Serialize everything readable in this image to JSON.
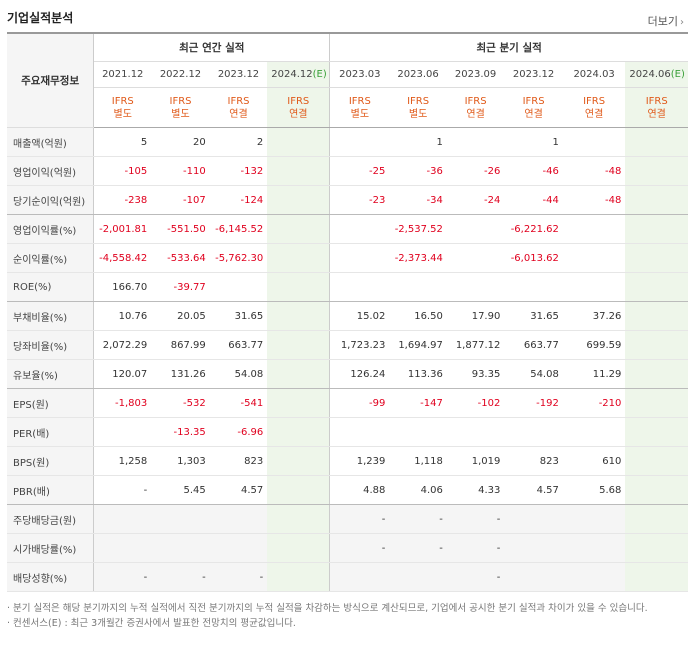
{
  "title": "기업실적분석",
  "more_label": "더보기",
  "header": {
    "row_label": "주요재무정보",
    "group_annual": "최근 연간 실적",
    "group_quarter": "최근 분기 실적",
    "periods": [
      {
        "label": "2021.12",
        "std": "IFRS",
        "kind": "별도"
      },
      {
        "label": "2022.12",
        "std": "IFRS",
        "kind": "별도"
      },
      {
        "label": "2023.12",
        "std": "IFRS",
        "kind": "연결"
      },
      {
        "label": "2024.12",
        "est": "(E)",
        "std": "IFRS",
        "kind": "연결"
      },
      {
        "label": "2023.03",
        "std": "IFRS",
        "kind": "별도"
      },
      {
        "label": "2023.06",
        "std": "IFRS",
        "kind": "별도"
      },
      {
        "label": "2023.09",
        "std": "IFRS",
        "kind": "연결"
      },
      {
        "label": "2023.12",
        "std": "IFRS",
        "kind": "연결"
      },
      {
        "label": "2024.03",
        "std": "IFRS",
        "kind": "연결"
      },
      {
        "label": "2024.06",
        "est": "(E)",
        "std": "IFRS",
        "kind": "연결"
      }
    ]
  },
  "rows": [
    {
      "label": "매출액(억원)",
      "values": [
        "5",
        "20",
        "2",
        "",
        "",
        "1",
        "",
        "1",
        "",
        ""
      ]
    },
    {
      "label": "영업이익(억원)",
      "values": [
        "-105",
        "-110",
        "-132",
        "",
        "-25",
        "-36",
        "-26",
        "-46",
        "-48",
        ""
      ]
    },
    {
      "label": "당기순이익(억원)",
      "values": [
        "-238",
        "-107",
        "-124",
        "",
        "-23",
        "-34",
        "-24",
        "-44",
        "-48",
        ""
      ]
    },
    {
      "label": "영업이익률(%)",
      "values": [
        "-2,001.81",
        "-551.50",
        "-6,145.52",
        "",
        "",
        "-2,537.52",
        "",
        "-6,221.62",
        "",
        ""
      ]
    },
    {
      "label": "순이익률(%)",
      "values": [
        "-4,558.42",
        "-533.64",
        "-5,762.30",
        "",
        "",
        "-2,373.44",
        "",
        "-6,013.62",
        "",
        ""
      ]
    },
    {
      "label": "ROE(%)",
      "values": [
        "166.70",
        "-39.77",
        "",
        "",
        "",
        "",
        "",
        "",
        "",
        ""
      ]
    },
    {
      "label": "부채비율(%)",
      "values": [
        "10.76",
        "20.05",
        "31.65",
        "",
        "15.02",
        "16.50",
        "17.90",
        "31.65",
        "37.26",
        ""
      ]
    },
    {
      "label": "당좌비율(%)",
      "values": [
        "2,072.29",
        "867.99",
        "663.77",
        "",
        "1,723.23",
        "1,694.97",
        "1,877.12",
        "663.77",
        "699.59",
        ""
      ]
    },
    {
      "label": "유보율(%)",
      "values": [
        "120.07",
        "131.26",
        "54.08",
        "",
        "126.24",
        "113.36",
        "93.35",
        "54.08",
        "11.29",
        ""
      ]
    },
    {
      "label": "EPS(원)",
      "values": [
        "-1,803",
        "-532",
        "-541",
        "",
        "-99",
        "-147",
        "-102",
        "-192",
        "-210",
        ""
      ]
    },
    {
      "label": "PER(배)",
      "values": [
        "",
        "-13.35",
        "-6.96",
        "",
        "",
        "",
        "",
        "",
        "",
        ""
      ]
    },
    {
      "label": "BPS(원)",
      "values": [
        "1,258",
        "1,303",
        "823",
        "",
        "1,239",
        "1,118",
        "1,019",
        "823",
        "610",
        ""
      ]
    },
    {
      "label": "PBR(배)",
      "values": [
        "-",
        "5.45",
        "4.57",
        "",
        "4.88",
        "4.06",
        "4.33",
        "4.57",
        "5.68",
        ""
      ]
    },
    {
      "label": "주당배당금(원)",
      "values": [
        "",
        "",
        "",
        "",
        "-",
        "-",
        "-",
        "",
        "",
        ""
      ]
    },
    {
      "label": "시가배당률(%)",
      "values": [
        "",
        "",
        "",
        "",
        "-",
        "-",
        "-",
        "",
        "",
        ""
      ]
    },
    {
      "label": "배당성향(%)",
      "values": [
        "-",
        "-",
        "-",
        "",
        "",
        "",
        "-",
        "",
        "",
        ""
      ]
    }
  ],
  "notes": [
    "분기 실적은 해당 분기까지의 누적 실적에서 직전 분기까지의 누적 실적을 차감하는 방식으로 계산되므로, 기업에서 공시한 분기 실적과 차이가 있을 수 있습니다.",
    "컨센서스(E) : 최근 3개월간 증권사에서 발표한 전망치의 평균값입니다."
  ]
}
